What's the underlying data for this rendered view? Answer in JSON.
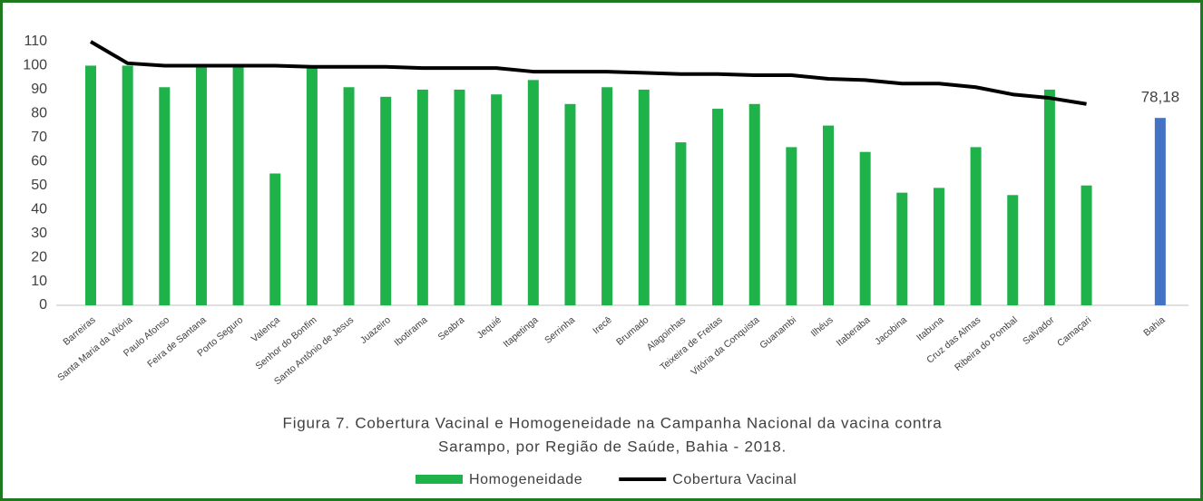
{
  "chart_data": {
    "type": "bar_line",
    "title": [
      "Figura 7. Cobertura Vacinal e Homogeneidade na Campanha Nacional da vacina contra",
      "Sarampo, por Região de Saúde, Bahia - 2018."
    ],
    "categories": [
      "Barreiras",
      "Santa Maria da Vitória",
      "Paulo Afonso",
      "Feira de Santana",
      "Porto Seguro",
      "Valença",
      "Senhor do Bonfim",
      "Santo Antônio de Jesus",
      "Juazeiro",
      "Ibotirama",
      "Seabra",
      "Jequié",
      "Itapetinga",
      "Serrinha",
      "Irecê",
      "Brumado",
      "Alagoinhas",
      "Teixeira de Freitas",
      "Vitória da Conquista",
      "Guanambi",
      "Ilhéus",
      "Itaberaba",
      "Jacobina",
      "Itabuna",
      "Cruz das Almas",
      "Ribeira do Pombal",
      "Salvador",
      "Camaçari",
      null,
      "Bahia"
    ],
    "series": [
      {
        "name": "Homogeneidade",
        "type": "bar",
        "color": "#1fb14a",
        "colors": [
          "#1fb14a",
          "#1fb14a",
          "#1fb14a",
          "#1fb14a",
          "#1fb14a",
          "#1fb14a",
          "#1fb14a",
          "#1fb14a",
          "#1fb14a",
          "#1fb14a",
          "#1fb14a",
          "#1fb14a",
          "#1fb14a",
          "#1fb14a",
          "#1fb14a",
          "#1fb14a",
          "#1fb14a",
          "#1fb14a",
          "#1fb14a",
          "#1fb14a",
          "#1fb14a",
          "#1fb14a",
          "#1fb14a",
          "#1fb14a",
          "#1fb14a",
          "#1fb14a",
          "#1fb14a",
          "#1fb14a",
          null,
          "#4472c4"
        ],
        "values": [
          100,
          100,
          91,
          100,
          100,
          55,
          99,
          91,
          87,
          90,
          90,
          88,
          94,
          84,
          91,
          90,
          68,
          82,
          84,
          66,
          75,
          64,
          47,
          49,
          66,
          46,
          90,
          50,
          null,
          78.18
        ],
        "value_labels": [
          null,
          null,
          null,
          null,
          null,
          null,
          null,
          null,
          null,
          null,
          null,
          null,
          null,
          null,
          null,
          null,
          null,
          null,
          null,
          null,
          null,
          null,
          null,
          null,
          null,
          null,
          null,
          null,
          null,
          "78,18"
        ]
      },
      {
        "name": "Cobertura Vacinal",
        "type": "line",
        "color": "#000000",
        "values": [
          110,
          101,
          100,
          100,
          100,
          100,
          99.5,
          99.5,
          99.5,
          99,
          99,
          99,
          97.5,
          97.5,
          97.5,
          97,
          96.5,
          96.5,
          96,
          96,
          94.5,
          94,
          92.5,
          92.5,
          91,
          88,
          86.5,
          84,
          null,
          null
        ]
      }
    ],
    "ylim": [
      0,
      110
    ],
    "yticks": [
      0,
      10,
      20,
      30,
      40,
      50,
      60,
      70,
      80,
      90,
      100,
      110
    ],
    "grid": false,
    "legend": "bottom"
  }
}
